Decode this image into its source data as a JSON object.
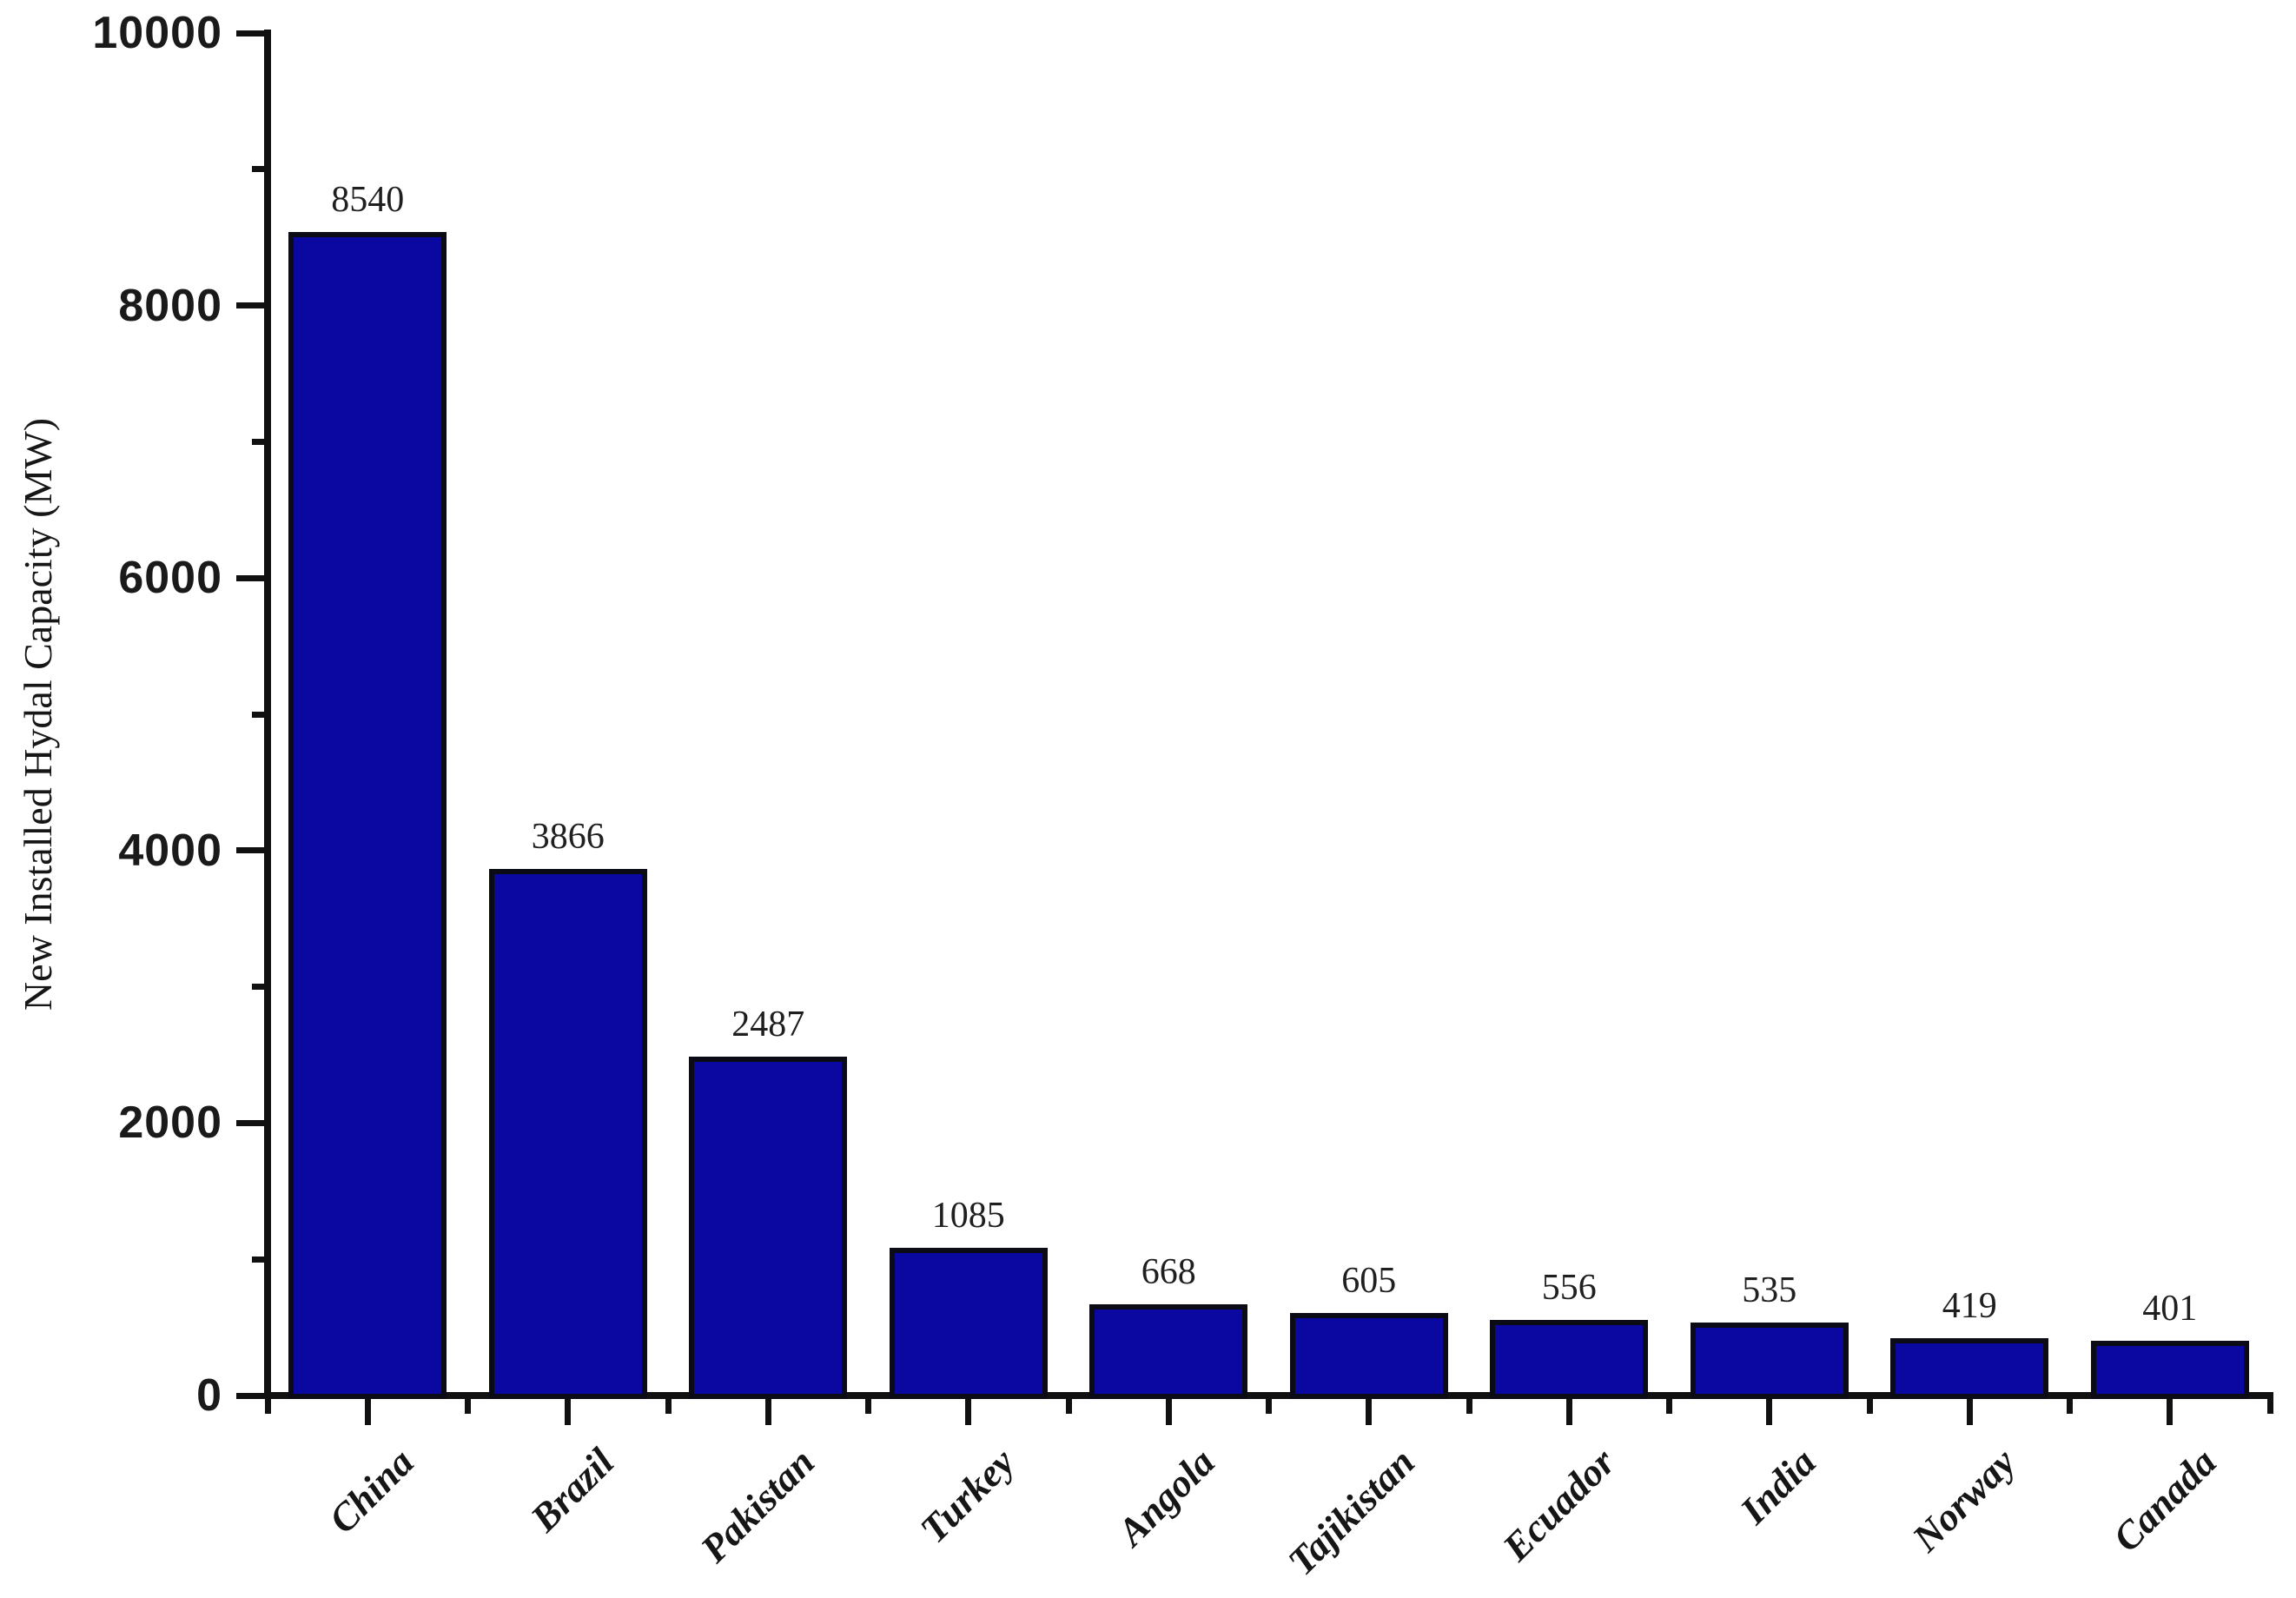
{
  "chart_data": {
    "type": "bar",
    "title": "",
    "categories": [
      "China",
      "Brazil",
      "Pakistan",
      "Turkey",
      "Angola",
      "Tajikistan",
      "Ecuador",
      "India",
      "Norway",
      "Canada"
    ],
    "values": [
      8540,
      3866,
      2487,
      1085,
      668,
      605,
      556,
      535,
      419,
      401
    ],
    "value_labels": [
      "8540",
      "3866",
      "2487",
      "1085",
      "668",
      "605",
      "556",
      "535",
      "419",
      "401"
    ],
    "xlabel": "",
    "ylabel": "New Installed Hydal Capacity (MW)",
    "ylim": [
      0,
      10000
    ],
    "y_major_ticks": [
      0,
      2000,
      4000,
      6000,
      8000,
      10000
    ],
    "y_minor_tick_step": 1000,
    "grid": false,
    "legend": "none",
    "value_labels_shown": true,
    "bar_color": "#0A08A0",
    "bar_edge_color": "#0B0B16",
    "axis_color": "#111111",
    "tick_label_color": "#1A1A1A"
  }
}
